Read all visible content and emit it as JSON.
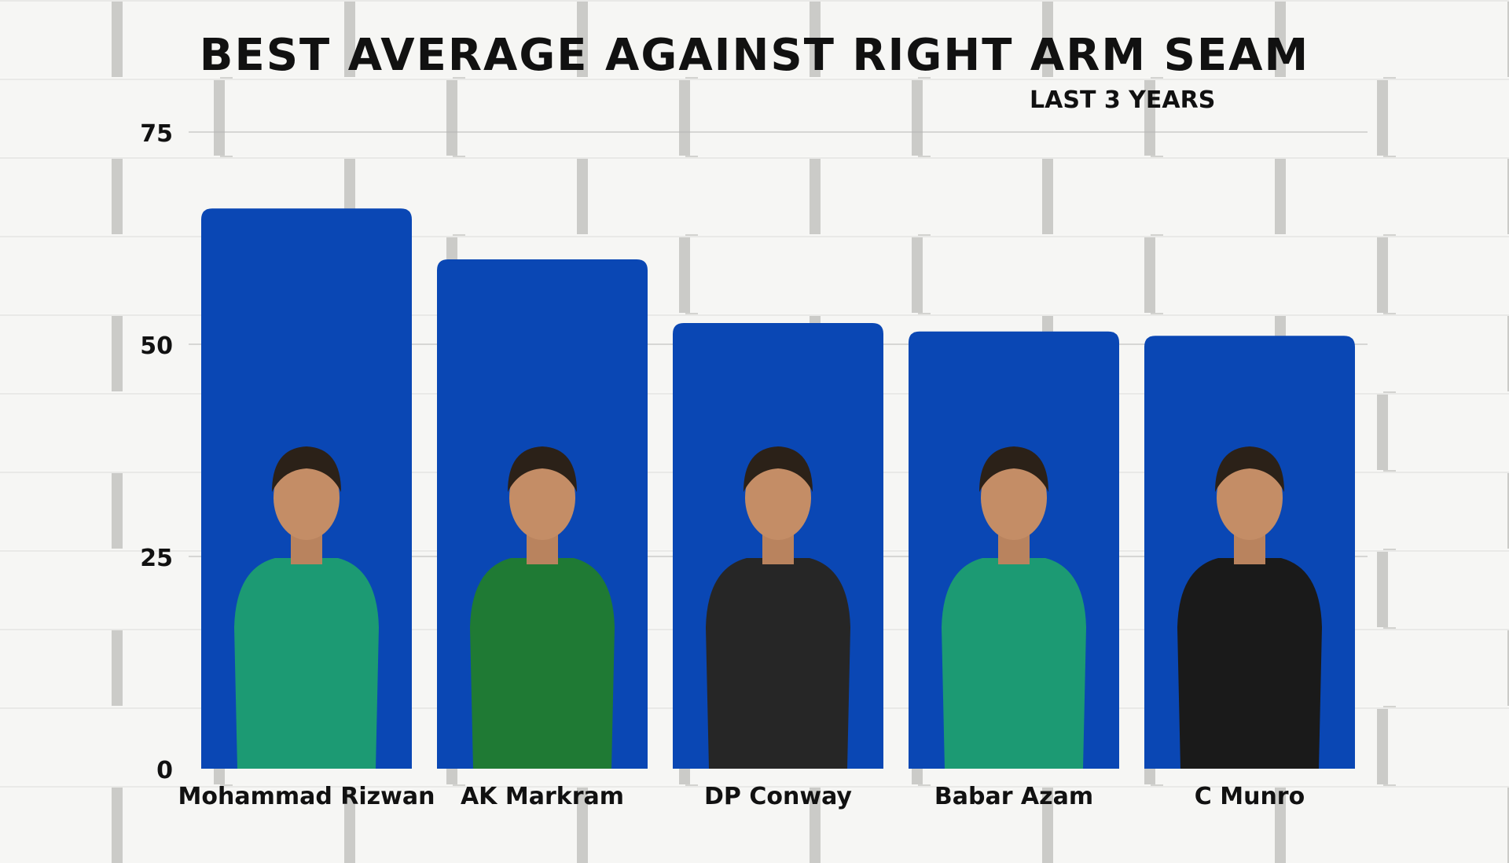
{
  "chart_data": {
    "type": "bar",
    "title": "BEST AVERAGE AGAINST RIGHT ARM SEAM",
    "subtitle": "LAST 3 YEARS",
    "categories": [
      "Mohammad Rizwan",
      "AK Markram",
      "DP Conway",
      "Babar Azam",
      "C Munro"
    ],
    "values": [
      66,
      60,
      52.5,
      51.5,
      51
    ],
    "ylim": [
      0,
      75
    ],
    "yticks": [
      0,
      25,
      50,
      75
    ],
    "grid": true,
    "bar_color": "#0a47b4",
    "jersey_colors": [
      "#1c9a73",
      "#1f7a34",
      "#262626",
      "#1c9a73",
      "#1a1a1a"
    ]
  }
}
